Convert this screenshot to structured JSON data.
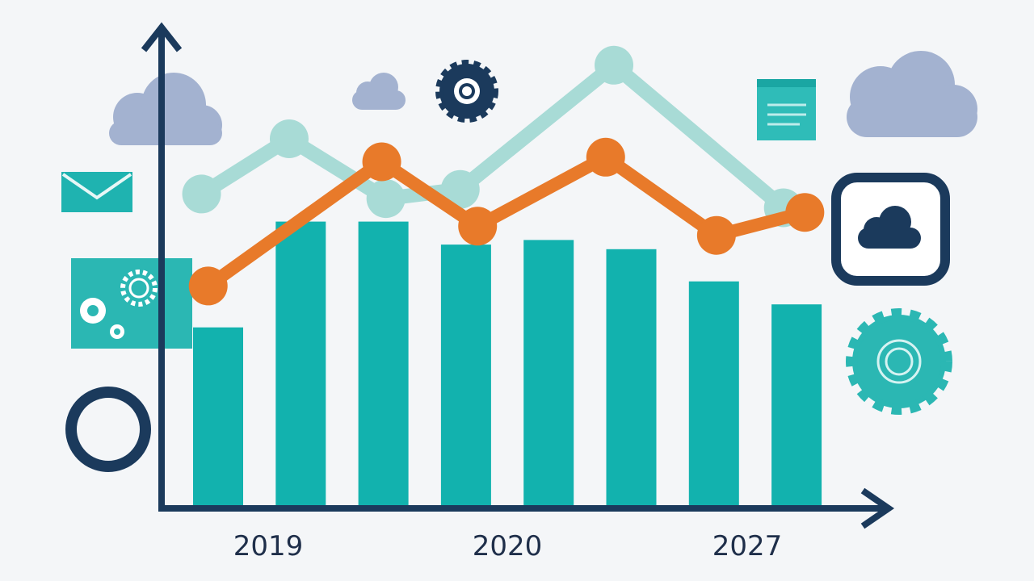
{
  "chart_data": {
    "type": "bar",
    "title": "",
    "xlabel": "",
    "ylabel": "",
    "x_tick_labels": [
      "2019",
      "2020",
      "2027"
    ],
    "bar_count": 8,
    "bars": [
      39,
      62,
      62,
      57,
      58,
      56,
      49,
      44
    ],
    "ylim": [
      0,
      100
    ],
    "grid": false,
    "legend": "none",
    "series": [
      {
        "type": "line",
        "color": "#e87a2a",
        "points": [
          [
            -0.12,
            48
          ],
          [
            1.98,
            75
          ],
          [
            3.14,
            61
          ],
          [
            4.69,
            76
          ],
          [
            6.03,
            59
          ],
          [
            7.1,
            64
          ]
        ]
      },
      {
        "type": "line",
        "color": "#a8dbd6",
        "points": [
          [
            -0.2,
            68
          ],
          [
            0.86,
            80
          ],
          [
            2.03,
            67
          ],
          [
            2.93,
            69
          ],
          [
            4.79,
            96
          ],
          [
            6.84,
            65
          ]
        ]
      }
    ],
    "colors": {
      "bar": "#12b2ae",
      "axis": "#1b3a5c",
      "background": "#f4f6f8",
      "cloud": "#9fb0cf"
    },
    "decorations": [
      "cloud-icon",
      "gear-icon",
      "envelope-icon",
      "document-icon",
      "ring-icon",
      "cloud-app-icon",
      "settings-panel-icon"
    ]
  }
}
